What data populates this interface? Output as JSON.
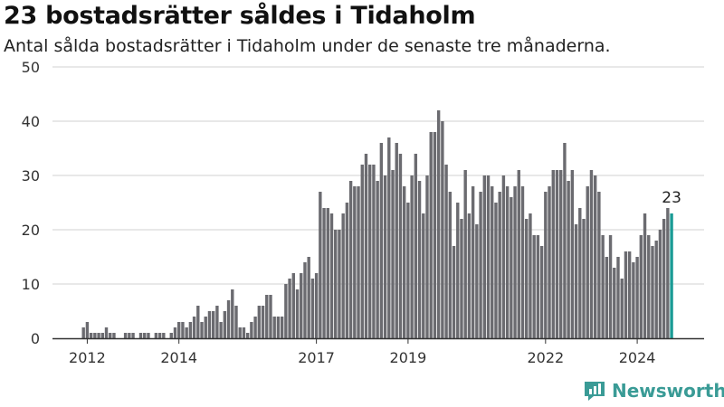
{
  "header": {
    "title": "23 bostadsrätter såldes i Tidaholm",
    "subtitle": "Antal sålda bostadsrätter i Tidaholm under de senaste tre månaderna."
  },
  "brand": {
    "name": "Newsworthy",
    "color": "#3a9b96"
  },
  "colors": {
    "bar": "#6b6b70",
    "highlight": "#1a9b95",
    "grid": "#d0d0d0",
    "axis": "#333333"
  },
  "chart_data": {
    "type": "bar",
    "ylim": [
      0,
      50
    ],
    "yticks": [
      0,
      10,
      20,
      30,
      40,
      50
    ],
    "xticks": [
      {
        "label": "2012",
        "index": 1
      },
      {
        "label": "2014",
        "index": 25
      },
      {
        "label": "2017",
        "index": 61
      },
      {
        "label": "2019",
        "index": 85
      },
      {
        "label": "2022",
        "index": 121
      },
      {
        "label": "2024",
        "index": 145
      }
    ],
    "grid": true,
    "highlight_last": true,
    "last_label": "23",
    "values": [
      2,
      3,
      1,
      1,
      1,
      1,
      2,
      1,
      1,
      0,
      0,
      1,
      1,
      1,
      0,
      1,
      1,
      1,
      0,
      1,
      1,
      1,
      0,
      1,
      2,
      3,
      3,
      2,
      3,
      4,
      6,
      3,
      4,
      5,
      5,
      6,
      3,
      5,
      7,
      9,
      6,
      2,
      2,
      1,
      3,
      4,
      6,
      6,
      8,
      8,
      4,
      4,
      4,
      10,
      11,
      12,
      9,
      12,
      14,
      15,
      11,
      12,
      27,
      24,
      24,
      23,
      20,
      20,
      23,
      25,
      29,
      28,
      28,
      32,
      34,
      32,
      32,
      29,
      36,
      30,
      37,
      31,
      36,
      34,
      28,
      25,
      30,
      34,
      29,
      23,
      30,
      38,
      38,
      42,
      40,
      32,
      27,
      17,
      25,
      22,
      31,
      23,
      28,
      21,
      27,
      30,
      30,
      28,
      25,
      27,
      30,
      28,
      26,
      28,
      31,
      28,
      22,
      23,
      19,
      19,
      17,
      27,
      28,
      31,
      31,
      31,
      36,
      29,
      31,
      21,
      24,
      22,
      28,
      31,
      30,
      27,
      19,
      15,
      19,
      13,
      15,
      11,
      16,
      16,
      14,
      15,
      19,
      23,
      19,
      17,
      18,
      20,
      22,
      24,
      23
    ]
  }
}
